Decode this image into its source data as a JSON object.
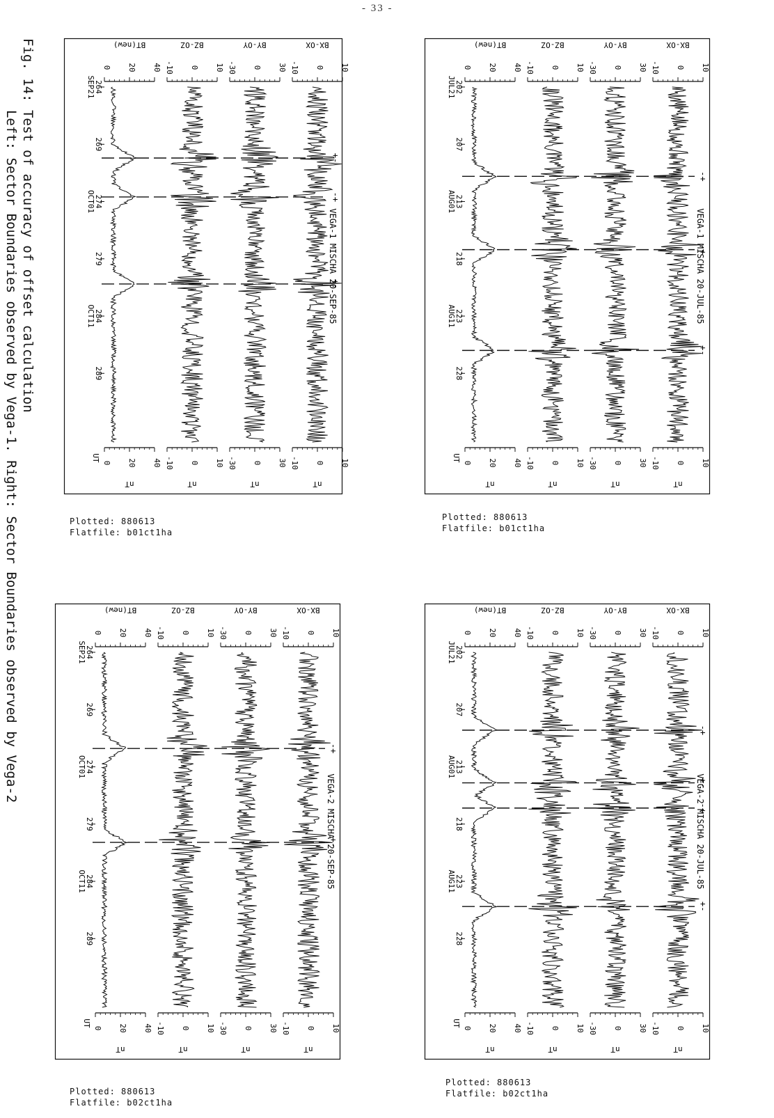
{
  "page": {
    "number": "- 33 -"
  },
  "figure": {
    "caption_line1": "Fig. 14: Test of accuracy of offset calculation",
    "caption_line2": "         Left: Sector Boundaries observed by Vega-1. Right: Sector Boundaries observed by Vega-2"
  },
  "panels": [
    {
      "id": "top-right",
      "title": "VEGA-1 MISCHA  20-JUL-85",
      "plotted": "Plotted: 880613",
      "flatfile": "Flatfile: b01ct1ha",
      "tick_labels": [
        "202\nJUL21",
        "207",
        "213\nAUG01",
        "218",
        "223\nAUG11",
        "228"
      ],
      "boundaries": [
        {
          "day": 209.8,
          "sign": "-+"
        },
        {
          "day": 216.2,
          "sign": "-+"
        },
        {
          "day": 225.0,
          "sign": "+-"
        }
      ]
    },
    {
      "id": "top-left",
      "title": "VEGA-1 MISCHA  20-SEP-85",
      "plotted": "Plotted: 880613",
      "flatfile": "Flatfile: b01ct1ha",
      "tick_labels": [
        "264\nSEP21",
        "269",
        "274\nOCT01",
        "279",
        "284\nOCT11",
        "289"
      ],
      "boundaries": [
        {
          "day": 270.2,
          "sign": "+-"
        },
        {
          "day": 273.6,
          "sign": "-+"
        },
        {
          "day": 281.2,
          "sign": "+-"
        }
      ]
    },
    {
      "id": "bottom-right",
      "title": "VEGA-2 MISCHA  20-JUL-85",
      "plotted": "Plotted: 880613",
      "flatfile": "Flatfile: b02ct1ha",
      "tick_labels": [
        "202\nJUL21",
        "207",
        "213\nAUG01",
        "218",
        "223\nAUG11",
        "228"
      ],
      "boundaries": [
        {
          "day": 208.8,
          "sign": "-+"
        },
        {
          "day": 213.4,
          "sign": "+-"
        },
        {
          "day": 215.6,
          "sign": "-+"
        },
        {
          "day": 224.2,
          "sign": "+-"
        }
      ]
    },
    {
      "id": "bottom-left",
      "title": "VEGA-2 MISCHA  20-SEP-85",
      "plotted": "Plotted: 880613",
      "flatfile": "Flatfile: b02ct1ha",
      "tick_labels": [
        "264\nSEP21",
        "269",
        "274\nOCT01",
        "279",
        "284\nOCT11",
        "289"
      ],
      "boundaries": [
        {
          "day": 272.4,
          "sign": "-+"
        },
        {
          "day": 280.6,
          "sign": "+-"
        }
      ]
    }
  ],
  "strips": [
    {
      "label": "BX-OX",
      "ticks": [
        "-10",
        "0",
        "10"
      ],
      "unit": "nT"
    },
    {
      "label": "BY-OY",
      "ticks": [
        "-30",
        "0",
        "30"
      ],
      "unit": "nT"
    },
    {
      "label": "BZ-OZ",
      "ticks": [
        "-10",
        "0",
        "10"
      ],
      "unit": "nT"
    },
    {
      "label": "BT(new)",
      "ticks": [
        "0",
        "20",
        "40"
      ],
      "unit": "nT"
    }
  ],
  "time_axis_label": "UT",
  "chart_data": [
    {
      "type": "line",
      "title": "VEGA-1 MISCHA  20-JUL-85",
      "x_range": [
        202,
        233
      ],
      "x_unit": "day of year",
      "series": [
        {
          "name": "BX-OX",
          "ylim": [
            -10,
            10
          ]
        },
        {
          "name": "BY-OY",
          "ylim": [
            -30,
            30
          ]
        },
        {
          "name": "BZ-OZ",
          "ylim": [
            -10,
            10
          ]
        },
        {
          "name": "BT(new)",
          "ylim": [
            0,
            40
          ]
        }
      ]
    },
    {
      "type": "line",
      "title": "VEGA-1 MISCHA  20-SEP-85",
      "x_range": [
        264,
        295
      ],
      "x_unit": "day of year",
      "series": [
        {
          "name": "BX-OX",
          "ylim": [
            -10,
            10
          ]
        },
        {
          "name": "BY-OY",
          "ylim": [
            -30,
            30
          ]
        },
        {
          "name": "BZ-OZ",
          "ylim": [
            -10,
            10
          ]
        },
        {
          "name": "BT(new)",
          "ylim": [
            0,
            40
          ]
        }
      ]
    },
    {
      "type": "line",
      "title": "VEGA-2 MISCHA  20-JUL-85",
      "x_range": [
        202,
        233
      ],
      "x_unit": "day of year",
      "series": [
        {
          "name": "BX-OX",
          "ylim": [
            -10,
            10
          ]
        },
        {
          "name": "BY-OY",
          "ylim": [
            -30,
            30
          ]
        },
        {
          "name": "BZ-OZ",
          "ylim": [
            -10,
            10
          ]
        },
        {
          "name": "BT(new)",
          "ylim": [
            0,
            40
          ]
        }
      ]
    },
    {
      "type": "line",
      "title": "VEGA-2 MISCHA  20-SEP-85",
      "x_range": [
        264,
        295
      ],
      "x_unit": "day of year",
      "series": [
        {
          "name": "BX-OX",
          "ylim": [
            -10,
            10
          ]
        },
        {
          "name": "BY-OY",
          "ylim": [
            -30,
            30
          ]
        },
        {
          "name": "BZ-OZ",
          "ylim": [
            -10,
            10
          ]
        },
        {
          "name": "BT(new)",
          "ylim": [
            0,
            40
          ]
        }
      ]
    }
  ]
}
